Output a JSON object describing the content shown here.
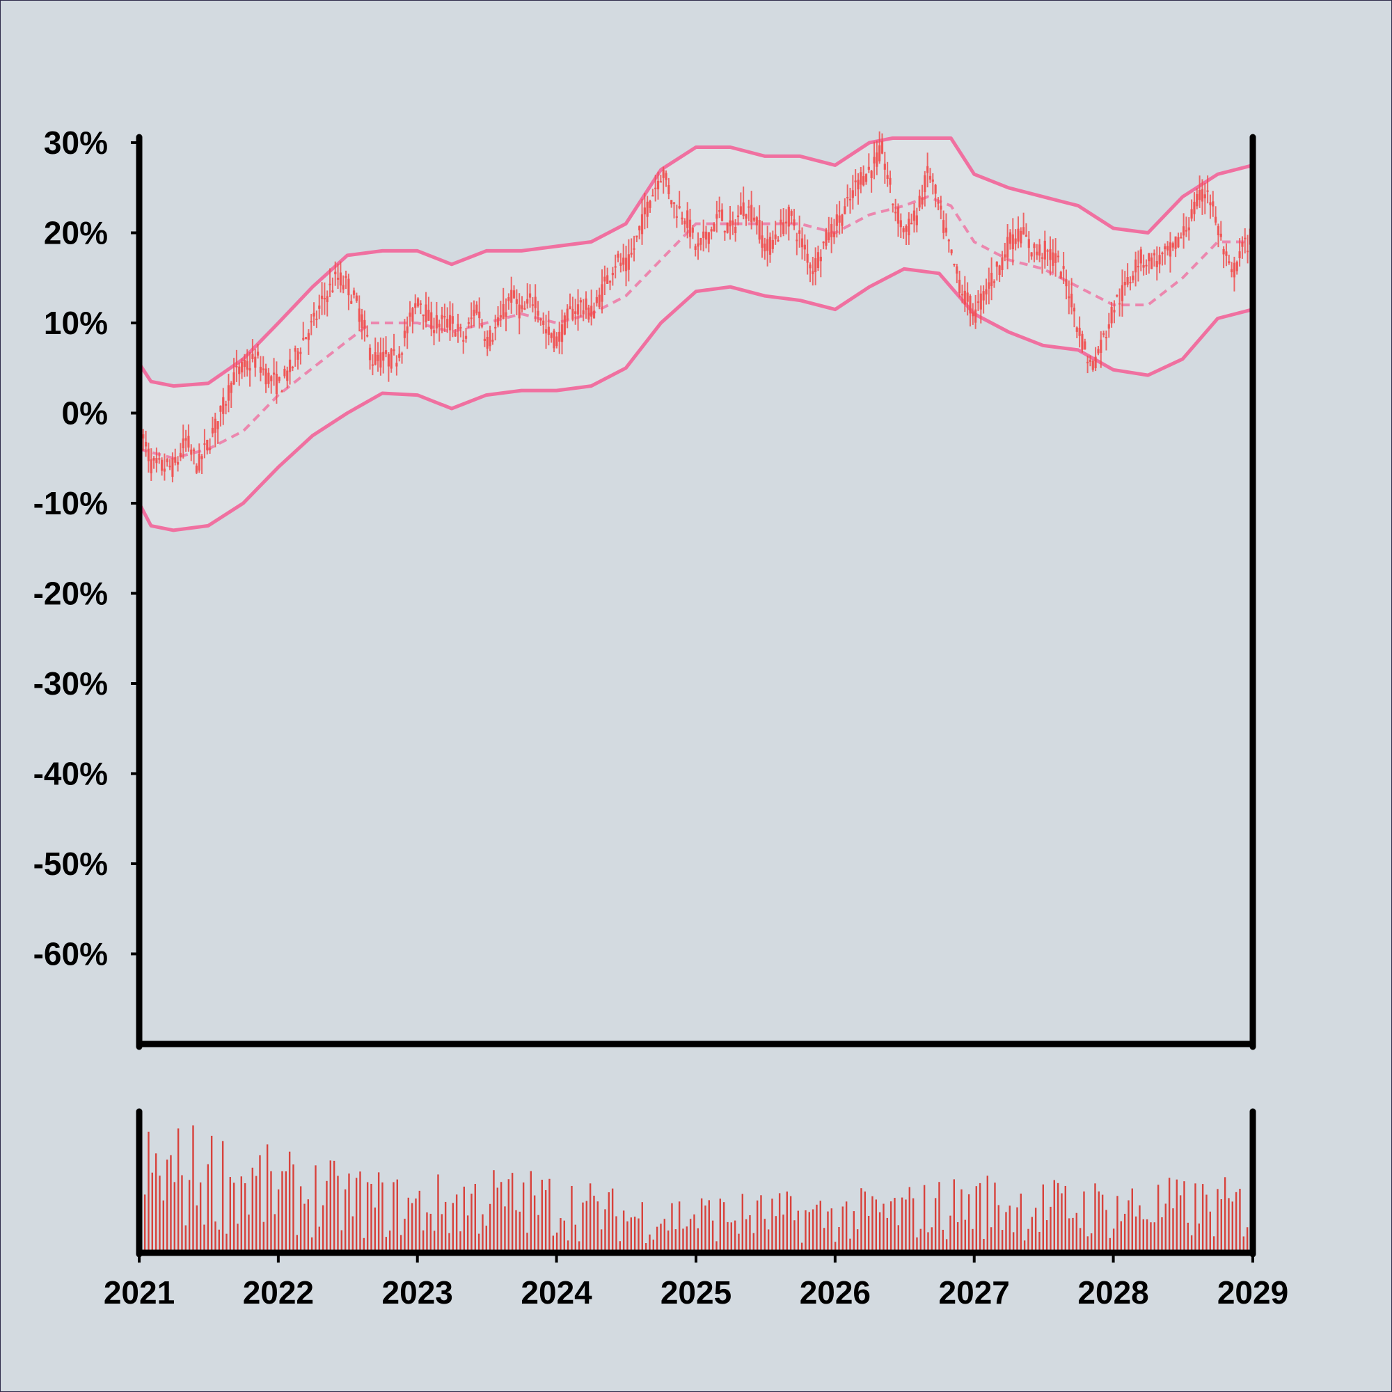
{
  "chart_data": [
    {
      "type": "candlestick",
      "title": "",
      "xlabel": "",
      "ylabel": "",
      "y_unit": "%",
      "xlim": [
        "2021",
        "2029"
      ],
      "ylim": [
        -70,
        30
      ],
      "x_tick_labels": [
        "2021",
        "2022",
        "2023",
        "2024",
        "2025",
        "2026",
        "2027",
        "2028",
        "2029"
      ],
      "y_ticks": [
        30,
        20,
        10,
        0,
        -10,
        -20,
        -30,
        -40,
        -50,
        -60
      ],
      "y_tick_labels": [
        "30%",
        "20%",
        "10%",
        "0%",
        "-10%",
        "-20%",
        "-30%",
        "-40%",
        "-50%",
        "-60%"
      ],
      "grid": false,
      "colors": {
        "candle": "#f05050",
        "band": "#f070a0",
        "band_fill": "#dde1e5",
        "background": "#d3dae0"
      },
      "close_path": [
        [
          "2021-01-01",
          -2
        ],
        [
          "2021-02-01",
          -6
        ],
        [
          "2021-04-01",
          -6
        ],
        [
          "2021-05-01",
          -3
        ],
        [
          "2021-06-01",
          -6
        ],
        [
          "2021-07-01",
          -3
        ],
        [
          "2021-08-01",
          0
        ],
        [
          "2021-09-01",
          4
        ],
        [
          "2021-11-01",
          6
        ],
        [
          "2021-12-01",
          4
        ],
        [
          "2022-01-01",
          3
        ],
        [
          "2022-02-01",
          5
        ],
        [
          "2022-03-01",
          8
        ],
        [
          "2022-04-01",
          10
        ],
        [
          "2022-05-01",
          13
        ],
        [
          "2022-06-01",
          15
        ],
        [
          "2022-07-01",
          14
        ],
        [
          "2022-08-01",
          11
        ],
        [
          "2022-09-01",
          6
        ],
        [
          "2022-11-01",
          6
        ],
        [
          "2022-12-01",
          9
        ],
        [
          "2023-01-01",
          13
        ],
        [
          "2023-02-01",
          10
        ],
        [
          "2023-04-01",
          10
        ],
        [
          "2023-05-01",
          8
        ],
        [
          "2023-06-01",
          12
        ],
        [
          "2023-07-01",
          8
        ],
        [
          "2023-08-01",
          10
        ],
        [
          "2023-09-01",
          13
        ],
        [
          "2023-10-01",
          11
        ],
        [
          "2023-11-01",
          13
        ],
        [
          "2023-12-01",
          9
        ],
        [
          "2024-01-01",
          8
        ],
        [
          "2024-02-01",
          11
        ],
        [
          "2024-03-01",
          12
        ],
        [
          "2024-04-01",
          11
        ],
        [
          "2024-05-01",
          14
        ],
        [
          "2024-06-01",
          17
        ],
        [
          "2024-07-01",
          16
        ],
        [
          "2024-08-01",
          20
        ],
        [
          "2024-09-01",
          24
        ],
        [
          "2024-10-01",
          27
        ],
        [
          "2024-11-01",
          23
        ],
        [
          "2024-12-01",
          22
        ],
        [
          "2025-01-01",
          18
        ],
        [
          "2025-02-01",
          20
        ],
        [
          "2025-03-01",
          22
        ],
        [
          "2025-04-01",
          20
        ],
        [
          "2025-05-01",
          23
        ],
        [
          "2025-06-01",
          22
        ],
        [
          "2025-07-01",
          18
        ],
        [
          "2025-08-01",
          20
        ],
        [
          "2025-09-01",
          22
        ],
        [
          "2025-10-01",
          19
        ],
        [
          "2025-11-01",
          16
        ],
        [
          "2025-12-01",
          19
        ],
        [
          "2026-01-01",
          21
        ],
        [
          "2026-02-01",
          23
        ],
        [
          "2026-03-01",
          26
        ],
        [
          "2026-04-01",
          27
        ],
        [
          "2026-05-01",
          29
        ],
        [
          "2026-06-01",
          23
        ],
        [
          "2026-07-01",
          20
        ],
        [
          "2026-08-01",
          22
        ],
        [
          "2026-09-01",
          27
        ],
        [
          "2026-10-01",
          22
        ],
        [
          "2026-11-01",
          17
        ],
        [
          "2026-12-01",
          13
        ],
        [
          "2027-01-01",
          11
        ],
        [
          "2027-02-01",
          14
        ],
        [
          "2027-03-01",
          16
        ],
        [
          "2027-04-01",
          19
        ],
        [
          "2027-05-01",
          20
        ],
        [
          "2027-06-01",
          18
        ],
        [
          "2027-07-01",
          18
        ],
        [
          "2027-08-01",
          17
        ],
        [
          "2027-09-01",
          14
        ],
        [
          "2027-10-01",
          9
        ],
        [
          "2027-11-01",
          5
        ],
        [
          "2027-12-01",
          8
        ],
        [
          "2028-01-01",
          12
        ],
        [
          "2028-02-01",
          14
        ],
        [
          "2028-03-01",
          17
        ],
        [
          "2028-05-01",
          17
        ],
        [
          "2028-06-01",
          18
        ],
        [
          "2028-07-01",
          20
        ],
        [
          "2028-08-01",
          23
        ],
        [
          "2028-09-01",
          25
        ],
        [
          "2028-10-01",
          20
        ],
        [
          "2028-11-01",
          15
        ],
        [
          "2028-12-01",
          18
        ],
        [
          "2029-01-01",
          20
        ]
      ],
      "middle_band": [
        [
          "2021-01-01",
          -4
        ],
        [
          "2021-04-01",
          -5
        ],
        [
          "2021-07-01",
          -4
        ],
        [
          "2021-10-01",
          -2
        ],
        [
          "2022-01-01",
          2
        ],
        [
          "2022-04-01",
          5
        ],
        [
          "2022-07-01",
          8
        ],
        [
          "2022-09-01",
          10
        ],
        [
          "2022-11-01",
          10
        ],
        [
          "2023-01-01",
          10
        ],
        [
          "2023-04-01",
          9
        ],
        [
          "2023-07-01",
          10
        ],
        [
          "2023-10-01",
          11
        ],
        [
          "2024-01-01",
          10
        ],
        [
          "2024-04-01",
          11
        ],
        [
          "2024-07-01",
          13
        ],
        [
          "2024-10-01",
          17
        ],
        [
          "2025-01-01",
          21
        ],
        [
          "2025-04-01",
          21
        ],
        [
          "2025-07-01",
          21
        ],
        [
          "2025-10-01",
          21
        ],
        [
          "2026-01-01",
          20
        ],
        [
          "2026-04-01",
          22
        ],
        [
          "2026-07-01",
          23
        ],
        [
          "2026-09-01",
          24
        ],
        [
          "2026-11-01",
          23
        ],
        [
          "2027-01-01",
          19
        ],
        [
          "2027-04-01",
          17
        ],
        [
          "2027-07-01",
          16
        ],
        [
          "2027-10-01",
          14
        ],
        [
          "2028-01-01",
          12
        ],
        [
          "2028-04-01",
          12
        ],
        [
          "2028-07-01",
          15
        ],
        [
          "2028-10-01",
          19
        ],
        [
          "2029-01-01",
          19
        ]
      ],
      "upper_band": [
        [
          "2021-01-01",
          5.5
        ],
        [
          "2021-02-01",
          3.5
        ],
        [
          "2021-04-01",
          3
        ],
        [
          "2021-07-01",
          3.3
        ],
        [
          "2021-10-01",
          6
        ],
        [
          "2022-01-01",
          10
        ],
        [
          "2022-04-01",
          14
        ],
        [
          "2022-07-01",
          17.5
        ],
        [
          "2022-10-01",
          18
        ],
        [
          "2023-01-01",
          18
        ],
        [
          "2023-04-01",
          16.5
        ],
        [
          "2023-07-01",
          18
        ],
        [
          "2023-10-01",
          18
        ],
        [
          "2024-01-01",
          18.5
        ],
        [
          "2024-04-01",
          19
        ],
        [
          "2024-07-01",
          21
        ],
        [
          "2024-10-01",
          27
        ],
        [
          "2025-01-01",
          29.5
        ],
        [
          "2025-04-01",
          29.5
        ],
        [
          "2025-07-01",
          28.5
        ],
        [
          "2025-10-01",
          28.5
        ],
        [
          "2026-01-01",
          27.5
        ],
        [
          "2026-04-01",
          30
        ],
        [
          "2026-06-01",
          30.5
        ],
        [
          "2026-11-01",
          30.5
        ],
        [
          "2027-01-01",
          26.5
        ],
        [
          "2027-04-01",
          25
        ],
        [
          "2027-07-01",
          24
        ],
        [
          "2027-10-01",
          23
        ],
        [
          "2028-01-01",
          20.5
        ],
        [
          "2028-04-01",
          20
        ],
        [
          "2028-07-01",
          24
        ],
        [
          "2028-10-01",
          26.5
        ],
        [
          "2029-01-01",
          27.5
        ]
      ],
      "lower_band": [
        [
          "2021-01-01",
          -10
        ],
        [
          "2021-02-01",
          -12.5
        ],
        [
          "2021-04-01",
          -13
        ],
        [
          "2021-07-01",
          -12.5
        ],
        [
          "2021-10-01",
          -10
        ],
        [
          "2022-01-01",
          -6
        ],
        [
          "2022-04-01",
          -2.5
        ],
        [
          "2022-07-01",
          0
        ],
        [
          "2022-10-01",
          2.2
        ],
        [
          "2023-01-01",
          2
        ],
        [
          "2023-04-01",
          0.5
        ],
        [
          "2023-07-01",
          2
        ],
        [
          "2023-10-01",
          2.5
        ],
        [
          "2024-01-01",
          2.5
        ],
        [
          "2024-04-01",
          3
        ],
        [
          "2024-07-01",
          5
        ],
        [
          "2024-10-01",
          10
        ],
        [
          "2025-01-01",
          13.5
        ],
        [
          "2025-04-01",
          14
        ],
        [
          "2025-07-01",
          13
        ],
        [
          "2025-10-01",
          12.5
        ],
        [
          "2026-01-01",
          11.5
        ],
        [
          "2026-04-01",
          14
        ],
        [
          "2026-07-01",
          16
        ],
        [
          "2026-10-01",
          15.5
        ],
        [
          "2027-01-01",
          11
        ],
        [
          "2027-04-01",
          9
        ],
        [
          "2027-07-01",
          7.5
        ],
        [
          "2027-10-01",
          7
        ],
        [
          "2028-01-01",
          4.8
        ],
        [
          "2028-04-01",
          4.2
        ],
        [
          "2028-07-01",
          6
        ],
        [
          "2028-10-01",
          10.5
        ],
        [
          "2029-01-01",
          11.5
        ]
      ]
    },
    {
      "type": "bar",
      "title": "",
      "xlabel": "",
      "ylabel": "",
      "xlim": [
        "2021",
        "2029"
      ],
      "x_tick_labels": [
        "2021",
        "2022",
        "2023",
        "2024",
        "2025",
        "2026",
        "2027",
        "2028",
        "2029"
      ],
      "ylim": [
        0,
        100
      ],
      "grid": false,
      "colors": {
        "bar": "#d8423c"
      },
      "volume_envelope": [
        [
          "2021-01-01",
          95
        ],
        [
          "2021-07-01",
          95
        ],
        [
          "2022-01-01",
          75
        ],
        [
          "2022-07-01",
          65
        ],
        [
          "2023-01-01",
          55
        ],
        [
          "2023-07-01",
          65
        ],
        [
          "2024-01-01",
          60
        ],
        [
          "2024-07-01",
          45
        ],
        [
          "2025-01-01",
          45
        ],
        [
          "2025-07-01",
          45
        ],
        [
          "2026-01-01",
          45
        ],
        [
          "2026-07-01",
          50
        ],
        [
          "2027-01-01",
          60
        ],
        [
          "2027-07-01",
          55
        ],
        [
          "2028-01-01",
          55
        ],
        [
          "2028-07-01",
          55
        ],
        [
          "2029-01-01",
          55
        ]
      ],
      "bar_count": 300
    }
  ]
}
